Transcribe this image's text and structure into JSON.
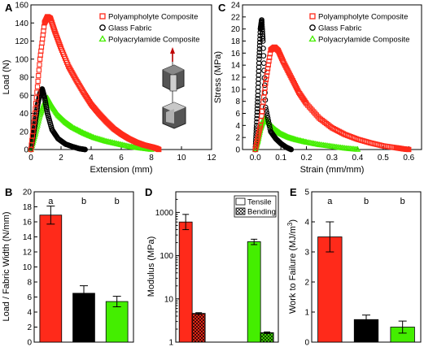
{
  "figure": {
    "background": "#ffffff"
  },
  "chart_data": [
    {
      "panel": "A",
      "type": "scatter",
      "xlabel": "Extension (mm)",
      "ylabel": "Load (N)",
      "xlim": [
        0,
        12
      ],
      "ylim": [
        0,
        160
      ],
      "xticks": [
        0,
        2,
        4,
        6,
        8,
        10,
        12
      ],
      "yticks": [
        0,
        20,
        40,
        60,
        80,
        100,
        120,
        140,
        160
      ],
      "legend_position": "top-right",
      "series": [
        {
          "name": "Polyampholyte Composite",
          "color": "#ff2a1a",
          "marker": "square",
          "x": [
            0,
            0.3,
            0.6,
            0.9,
            1.1,
            1.3,
            1.6,
            2.0,
            2.5,
            3.0,
            3.5,
            4.0,
            4.5,
            5.0,
            5.5,
            6.0,
            6.5,
            7.0,
            7.5,
            8.0,
            8.3,
            8.5
          ],
          "y": [
            0,
            45,
            100,
            140,
            147,
            145,
            130,
            112,
            92,
            77,
            63,
            50,
            40,
            31,
            23,
            17,
            12,
            8,
            5,
            3,
            1.5,
            0
          ]
        },
        {
          "name": "Glass Fabric",
          "color": "#000000",
          "marker": "circle",
          "x": [
            0,
            0.15,
            0.3,
            0.45,
            0.6,
            0.75,
            0.9,
            1.1,
            1.4,
            1.8,
            2.3,
            2.8,
            3.2,
            3.6
          ],
          "y": [
            0,
            15,
            32,
            50,
            62,
            67,
            58,
            40,
            22,
            12,
            6,
            3,
            1,
            0
          ]
        },
        {
          "name": "Polyacrylamide Composite",
          "color": "#44ee00",
          "marker": "triangle",
          "x": [
            0,
            0.3,
            0.6,
            0.9,
            1.1,
            1.4,
            1.8,
            2.3,
            2.8,
            3.5,
            4.2,
            5.0,
            5.8,
            6.6,
            7.3,
            8.0
          ],
          "y": [
            0,
            18,
            38,
            52,
            57,
            48,
            38,
            30,
            24,
            18,
            13,
            9,
            6,
            3,
            1.5,
            0
          ]
        }
      ]
    },
    {
      "panel": "C",
      "type": "scatter",
      "xlabel": "Strain (mm/mm)",
      "ylabel": "Stress (MPa)",
      "xlim": [
        -0.05,
        0.65
      ],
      "ylim": [
        0,
        24
      ],
      "xticks": [
        0.0,
        0.1,
        0.2,
        0.3,
        0.4,
        0.5,
        0.6
      ],
      "yticks": [
        0,
        2,
        4,
        6,
        8,
        10,
        12,
        14,
        16,
        18,
        20,
        22,
        24
      ],
      "legend_position": "top-right",
      "series": [
        {
          "name": "Polyampholyte Composite",
          "color": "#ff2a1a",
          "marker": "square",
          "x": [
            0,
            0.02,
            0.04,
            0.06,
            0.075,
            0.09,
            0.11,
            0.14,
            0.17,
            0.2,
            0.25,
            0.3,
            0.35,
            0.4,
            0.45,
            0.5,
            0.55,
            0.58,
            0.6
          ],
          "y": [
            0,
            4,
            11,
            16.5,
            17,
            16.4,
            14.5,
            12,
            9.5,
            7.6,
            5.2,
            3.6,
            2.5,
            1.7,
            1.1,
            0.6,
            0.3,
            0.1,
            0
          ]
        },
        {
          "name": "Glass Fabric",
          "color": "#000000",
          "marker": "circle",
          "x": [
            0,
            0.005,
            0.01,
            0.015,
            0.02,
            0.025,
            0.03,
            0.04,
            0.06,
            0.08,
            0.1,
            0.12,
            0.14
          ],
          "y": [
            0,
            4,
            9,
            15,
            20,
            21.5,
            18,
            7,
            3,
            1.8,
            1,
            0.4,
            0
          ]
        },
        {
          "name": "Polyacrylamide Composite",
          "color": "#44ee00",
          "marker": "triangle",
          "x": [
            0,
            0.01,
            0.02,
            0.03,
            0.04,
            0.06,
            0.08,
            0.1,
            0.13,
            0.16,
            0.2,
            0.25,
            0.3,
            0.35,
            0.4
          ],
          "y": [
            0,
            1.5,
            3.5,
            4.8,
            5.2,
            4,
            3.2,
            2.6,
            2,
            1.6,
            1.2,
            0.8,
            0.5,
            0.2,
            0
          ]
        }
      ]
    },
    {
      "panel": "B",
      "type": "bar",
      "xlabel": "",
      "ylabel": "Load / Fabric Width (N/mm)",
      "ylim": [
        0,
        20
      ],
      "yticks": [
        0,
        2,
        4,
        6,
        8,
        10,
        12,
        14,
        16,
        18,
        20
      ],
      "categories": [
        "Polyampholyte Composite",
        "Glass Fabric",
        "Polyacrylamide Composite"
      ],
      "values": [
        16.9,
        6.5,
        5.4
      ],
      "errors": [
        1.2,
        1.0,
        0.7
      ],
      "colors": [
        "#ff2a1a",
        "#000000",
        "#44ee00"
      ],
      "annotations": [
        "a",
        "b",
        "b"
      ]
    },
    {
      "panel": "D",
      "type": "bar",
      "xlabel": "",
      "ylabel": "Modulus (MPa)",
      "scale": "log",
      "ylim": [
        1,
        3000
      ],
      "yticks": [
        1,
        10,
        100,
        1000
      ],
      "categories": [
        "Polyampholyte Composite",
        "Glass Fabric",
        "Polyacrylamide Composite"
      ],
      "colors": [
        "#ff2a1a",
        "#000000",
        "#44ee00"
      ],
      "legend_position": "top-right",
      "series": [
        {
          "name": "Tensile",
          "values": [
            600,
            null,
            210
          ],
          "errors_low": [
            400,
            null,
            180
          ],
          "errors_high": [
            900,
            null,
            240
          ]
        },
        {
          "name": "Bending",
          "values": [
            4.6,
            null,
            1.65
          ],
          "errors_low": [
            4.4,
            null,
            1.58
          ],
          "errors_high": [
            4.8,
            null,
            1.72
          ]
        }
      ]
    },
    {
      "panel": "E",
      "type": "bar",
      "xlabel": "",
      "ylabel": "Work to Failure (MJ/m3)",
      "ylim": [
        0,
        5
      ],
      "yticks": [
        0,
        1,
        2,
        3,
        4,
        5
      ],
      "categories": [
        "Polyampholyte Composite",
        "Glass Fabric",
        "Polyacrylamide Composite"
      ],
      "values": [
        3.5,
        0.75,
        0.5
      ],
      "errors": [
        0.5,
        0.15,
        0.2
      ],
      "colors": [
        "#ff2a1a",
        "#000000",
        "#44ee00"
      ],
      "annotations": [
        "a",
        "b",
        "b"
      ]
    }
  ],
  "text": {
    "panel_a": "A",
    "panel_b": "B",
    "panel_c": "C",
    "panel_d": "D",
    "panel_e": "E",
    "work_ylabel_main": "Work to Failure (MJ/m",
    "work_ylabel_sup": "3",
    "work_ylabel_end": ")"
  }
}
